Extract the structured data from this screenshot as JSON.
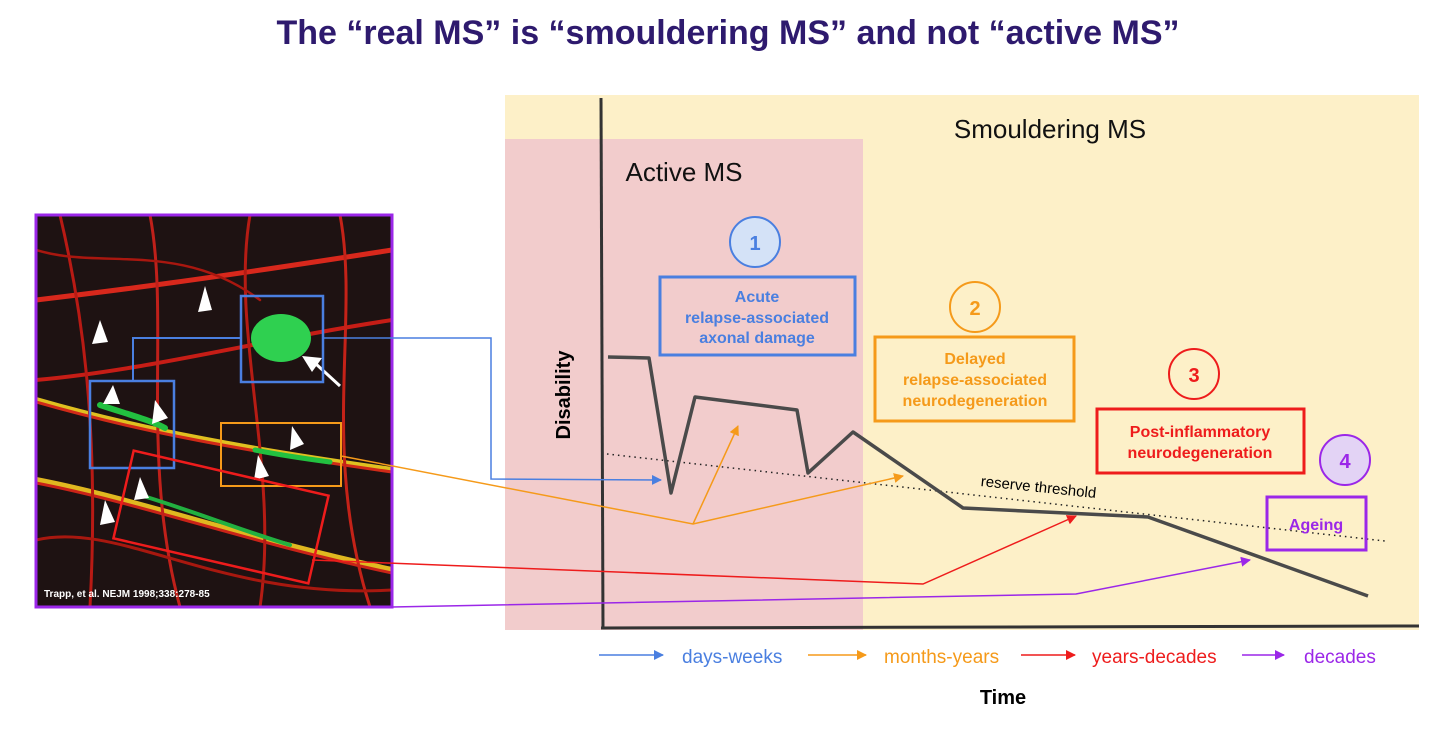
{
  "title": "The “real MS”  is “smouldering MS” and not “active MS”",
  "regions": {
    "smouldering": "Smouldering MS",
    "active": "Active MS"
  },
  "axes": {
    "y_label": "Disability",
    "x_label": "Time"
  },
  "threshold_label": "reserve threshold",
  "stages": [
    {
      "number": "1",
      "line1": "Acute",
      "line2": "relapse-associated",
      "line3": "axonal damage",
      "color": "#4a7fe0"
    },
    {
      "number": "2",
      "line1": "Delayed",
      "line2": "relapse-associated",
      "line3": "neurodegeneration",
      "color": "#f59a1a"
    },
    {
      "number": "3",
      "line1": "Post-inflammatory",
      "line2": "neurodegeneration",
      "color": "#ee1c1c"
    },
    {
      "number": "4",
      "line1": "Ageing",
      "color": "#9b27e8"
    }
  ],
  "legend": [
    {
      "label": "days-weeks",
      "color": "#4a7fe0"
    },
    {
      "label": "months-years",
      "color": "#f59a1a"
    },
    {
      "label": "years-decades",
      "color": "#ee1c1c"
    },
    {
      "label": "decades",
      "color": "#9b27e8"
    }
  ],
  "micrograph": {
    "citation": "Trapp, et al. NEJM 1998;338:278-85",
    "border_color": "#9b27e8"
  },
  "colors": {
    "title": "#2e1a6e",
    "smouldering_bg": "#fdf0c8",
    "active_bg": "#f2cccc",
    "curve": "#4a4a4a"
  }
}
